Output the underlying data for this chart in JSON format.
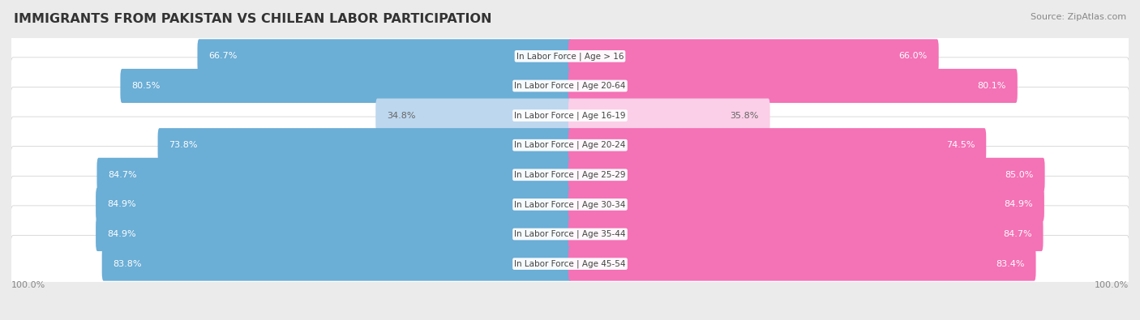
{
  "title": "IMMIGRANTS FROM PAKISTAN VS CHILEAN LABOR PARTICIPATION",
  "source": "Source: ZipAtlas.com",
  "categories": [
    "In Labor Force | Age > 16",
    "In Labor Force | Age 20-64",
    "In Labor Force | Age 16-19",
    "In Labor Force | Age 20-24",
    "In Labor Force | Age 25-29",
    "In Labor Force | Age 30-34",
    "In Labor Force | Age 35-44",
    "In Labor Force | Age 45-54"
  ],
  "pakistan_values": [
    66.7,
    80.5,
    34.8,
    73.8,
    84.7,
    84.9,
    84.9,
    83.8
  ],
  "chilean_values": [
    66.0,
    80.1,
    35.8,
    74.5,
    85.0,
    84.9,
    84.7,
    83.4
  ],
  "pakistan_color": "#6BAED6",
  "pakistan_color_light": "#BDD7EE",
  "chilean_color": "#F472B6",
  "chilean_color_light": "#FBCFE8",
  "row_bg_color": "#FFFFFF",
  "background_color": "#EBEBEB",
  "title_color": "#333333",
  "source_color": "#888888",
  "label_dark_color": "#FFFFFF",
  "label_light_color": "#666666",
  "title_fontsize": 11.5,
  "source_fontsize": 8,
  "bar_label_fontsize": 8,
  "category_fontsize": 7.5,
  "legend_fontsize": 9,
  "axis_tick_fontsize": 8,
  "max_value": 100.0
}
